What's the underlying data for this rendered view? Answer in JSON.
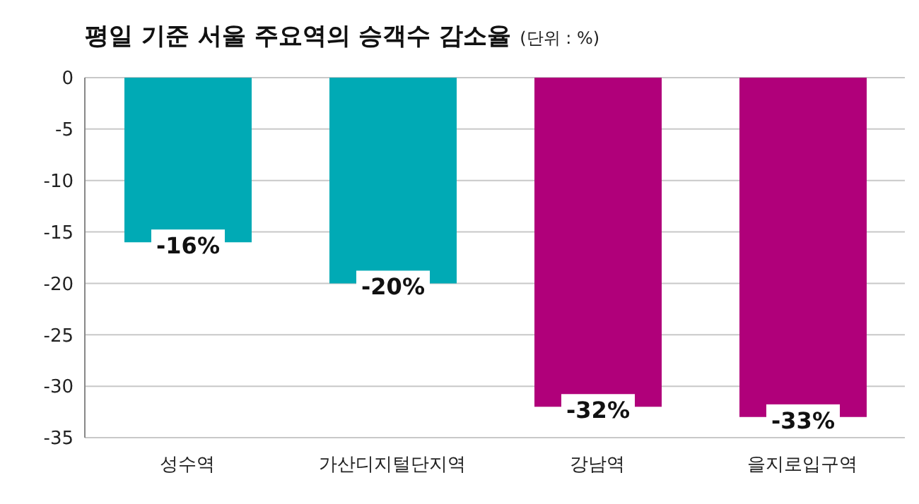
{
  "chart_data": {
    "type": "bar",
    "title": "평일 기준 서울 주요역의 승객수 감소율",
    "subtitle": "(단위 : %)",
    "categories": [
      "성수역",
      "가산디지털단지역",
      "강남역",
      "을지로입구역"
    ],
    "values": [
      -16,
      -20,
      -32,
      -33
    ],
    "colors": [
      "#00aab5",
      "#00aab5",
      "#b0007a",
      "#b0007a"
    ],
    "value_labels": [
      "-16%",
      "-20%",
      "-32%",
      "-33%"
    ],
    "ylim": [
      -35,
      0
    ],
    "yticks": [
      0,
      -5,
      -10,
      -15,
      -20,
      -25,
      -30,
      -35
    ],
    "grid": "y"
  }
}
